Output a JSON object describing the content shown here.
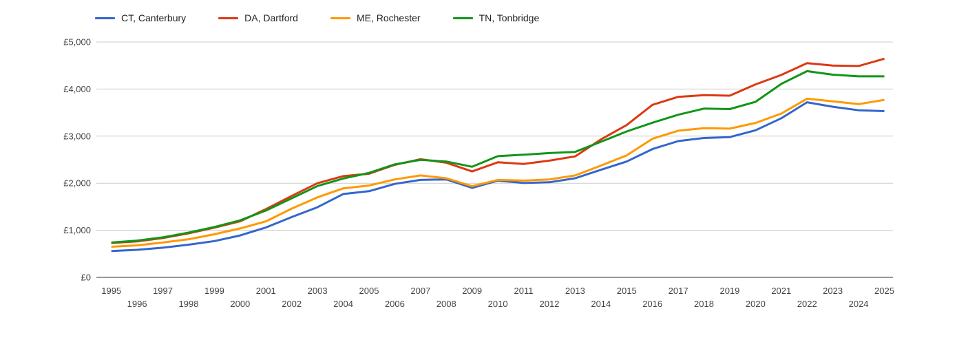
{
  "chart_data": {
    "type": "line",
    "title": "",
    "xlabel": "",
    "ylabel": "",
    "currency": "£",
    "x": [
      1995,
      1996,
      1997,
      1998,
      1999,
      2000,
      2001,
      2002,
      2003,
      2004,
      2005,
      2006,
      2007,
      2008,
      2009,
      2010,
      2011,
      2012,
      2013,
      2014,
      2015,
      2016,
      2017,
      2018,
      2019,
      2020,
      2021,
      2022,
      2023,
      2024,
      2025
    ],
    "series": [
      {
        "name": "CT, Canterbury",
        "color": "#3366CC",
        "values": [
          560,
          585,
          630,
          695,
          770,
          890,
          1060,
          1280,
          1490,
          1770,
          1830,
          1985,
          2070,
          2080,
          1900,
          2055,
          2005,
          2020,
          2105,
          2285,
          2460,
          2725,
          2895,
          2960,
          2980,
          3125,
          3380,
          3720,
          3625,
          3550,
          3530
        ]
      },
      {
        "name": "DA, Dartford",
        "color": "#DC3912",
        "values": [
          730,
          765,
          835,
          935,
          1055,
          1190,
          1450,
          1730,
          2000,
          2150,
          2200,
          2390,
          2510,
          2435,
          2250,
          2445,
          2410,
          2480,
          2570,
          2930,
          3235,
          3665,
          3835,
          3870,
          3860,
          4100,
          4300,
          4550,
          4500,
          4490,
          4645
        ]
      },
      {
        "name": "ME, Rochester",
        "color": "#FF9900",
        "values": [
          650,
          680,
          740,
          810,
          915,
          1040,
          1190,
          1460,
          1700,
          1890,
          1950,
          2080,
          2165,
          2105,
          1935,
          2070,
          2055,
          2080,
          2165,
          2375,
          2590,
          2945,
          3115,
          3170,
          3160,
          3280,
          3480,
          3795,
          3740,
          3680,
          3770
        ]
      },
      {
        "name": "TN, Tonbridge",
        "color": "#109618",
        "values": [
          740,
          780,
          850,
          950,
          1070,
          1210,
          1420,
          1680,
          1940,
          2100,
          2220,
          2400,
          2495,
          2460,
          2350,
          2575,
          2605,
          2640,
          2665,
          2880,
          3100,
          3285,
          3455,
          3585,
          3575,
          3730,
          4110,
          4380,
          4305,
          4270,
          4270
        ]
      }
    ],
    "ylim": [
      0,
      5000
    ],
    "y_ticks": [
      0,
      1000,
      2000,
      3000,
      4000,
      5000
    ],
    "y_tick_labels": [
      "£0",
      "£1,000",
      "£2,000",
      "£3,000",
      "£4,000",
      "£5,000"
    ],
    "grid": true,
    "legend_position": "top",
    "x_tick_rows": "staggered",
    "colors": {
      "gridline": "#cccccc",
      "baseline": "#333333",
      "tick_text": "#444444",
      "legend_text": "#222222",
      "background": "#ffffff"
    }
  }
}
